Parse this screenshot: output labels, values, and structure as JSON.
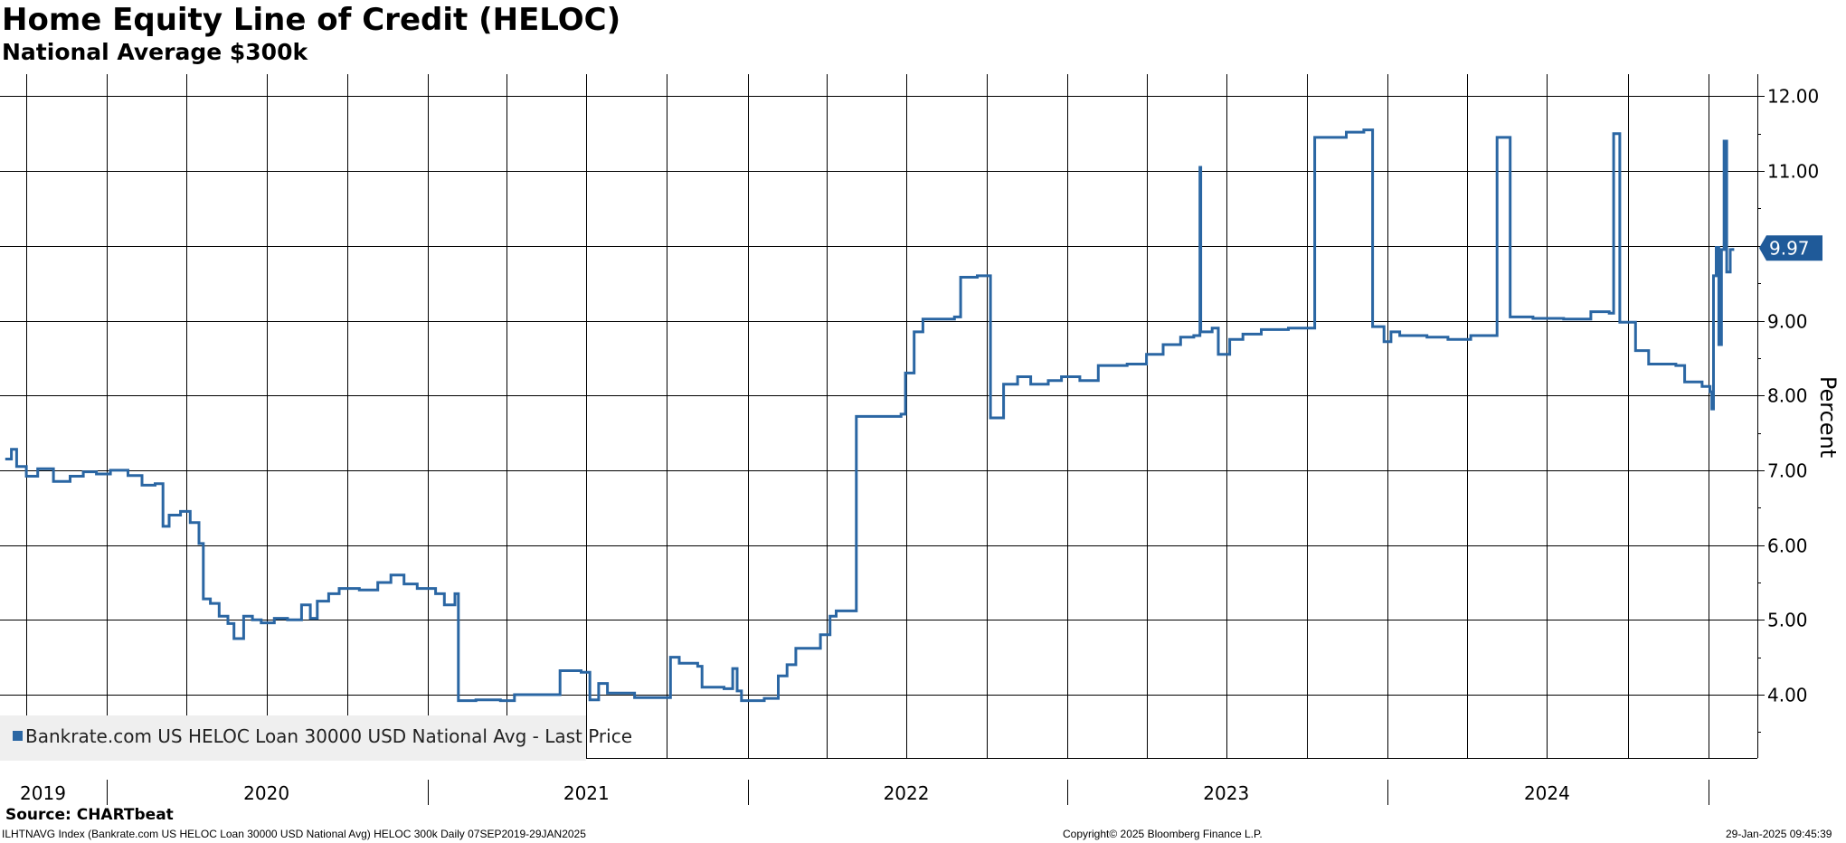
{
  "title": "Home Equity Line of Credit (HELOC)",
  "subtitle": "National Average $300k",
  "source": "Source: CHARTbeat",
  "footer": {
    "left": "ILHTNAVG Index (Bankrate.com US HELOC Loan 30000 USD National Avg) HELOC 300k  Daily 07SEP2019-29JAN2025",
    "center": "Copyright© 2025 Bloomberg Finance L.P.",
    "right": "29-Jan-2025 09:45:39"
  },
  "colors": {
    "line": "#2a66a3",
    "last_price_tag": "#1f5a99",
    "grid": "#000000"
  },
  "chart_data": {
    "type": "line",
    "ylabel": "Percent",
    "ylim": [
      3.2,
      12.2
    ],
    "xlim": [
      "2019-09-07",
      "2025-01-29"
    ],
    "yticks": [
      "4.00",
      "5.00",
      "6.00",
      "7.00",
      "8.00",
      "9.00",
      "10.00",
      "11.00",
      "12.00"
    ],
    "year_labels": [
      "2019",
      "2020",
      "2021",
      "2022",
      "2023",
      "2024"
    ],
    "last_price": "9.97",
    "grid": true,
    "legend": {
      "position": "bottom-left",
      "label": "Bankrate.com US HELOC Loan 30000 USD National Avg - Last Price"
    },
    "series": [
      {
        "name": "Bankrate.com US HELOC Loan 30000 USD National Avg - Last Price",
        "points": [
          [
            "2019-09-07",
            7.15
          ],
          [
            "2019-09-14",
            7.28
          ],
          [
            "2019-09-20",
            7.05
          ],
          [
            "2019-10-01",
            6.92
          ],
          [
            "2019-10-14",
            7.02
          ],
          [
            "2019-11-01",
            6.85
          ],
          [
            "2019-11-20",
            6.92
          ],
          [
            "2019-12-05",
            6.98
          ],
          [
            "2019-12-20",
            6.95
          ],
          [
            "2020-01-05",
            7.0
          ],
          [
            "2020-01-25",
            6.93
          ],
          [
            "2020-02-10",
            6.8
          ],
          [
            "2020-02-25",
            6.82
          ],
          [
            "2020-03-05",
            6.25
          ],
          [
            "2020-03-12",
            6.4
          ],
          [
            "2020-03-25",
            6.45
          ],
          [
            "2020-04-05",
            6.3
          ],
          [
            "2020-04-15",
            6.02
          ],
          [
            "2020-04-20",
            5.28
          ],
          [
            "2020-04-28",
            5.22
          ],
          [
            "2020-05-08",
            5.05
          ],
          [
            "2020-05-18",
            4.95
          ],
          [
            "2020-05-25",
            4.75
          ],
          [
            "2020-06-05",
            5.05
          ],
          [
            "2020-06-15",
            5.0
          ],
          [
            "2020-06-25",
            4.96
          ],
          [
            "2020-07-10",
            5.02
          ],
          [
            "2020-07-25",
            5.0
          ],
          [
            "2020-08-10",
            5.2
          ],
          [
            "2020-08-20",
            5.02
          ],
          [
            "2020-08-28",
            5.25
          ],
          [
            "2020-09-10",
            5.35
          ],
          [
            "2020-09-22",
            5.42
          ],
          [
            "2020-10-15",
            5.4
          ],
          [
            "2020-11-05",
            5.5
          ],
          [
            "2020-11-20",
            5.6
          ],
          [
            "2020-12-05",
            5.48
          ],
          [
            "2020-12-20",
            5.42
          ],
          [
            "2021-01-10",
            5.35
          ],
          [
            "2021-01-20",
            5.2
          ],
          [
            "2021-02-01",
            5.35
          ],
          [
            "2021-02-05",
            3.92
          ],
          [
            "2021-02-25",
            3.93
          ],
          [
            "2021-03-25",
            3.92
          ],
          [
            "2021-04-10",
            4.0
          ],
          [
            "2021-05-15",
            4.0
          ],
          [
            "2021-06-01",
            4.32
          ],
          [
            "2021-06-25",
            4.3
          ],
          [
            "2021-07-05",
            3.93
          ],
          [
            "2021-07-15",
            4.15
          ],
          [
            "2021-07-25",
            4.02
          ],
          [
            "2021-08-25",
            3.96
          ],
          [
            "2021-09-25",
            3.96
          ],
          [
            "2021-10-05",
            4.5
          ],
          [
            "2021-10-15",
            4.42
          ],
          [
            "2021-11-05",
            4.38
          ],
          [
            "2021-11-10",
            4.1
          ],
          [
            "2021-12-05",
            4.08
          ],
          [
            "2021-12-15",
            4.35
          ],
          [
            "2021-12-20",
            4.05
          ],
          [
            "2021-12-25",
            3.92
          ],
          [
            "2022-01-20",
            3.95
          ],
          [
            "2022-02-05",
            4.25
          ],
          [
            "2022-02-15",
            4.4
          ],
          [
            "2022-02-25",
            4.62
          ],
          [
            "2022-03-25",
            4.8
          ],
          [
            "2022-04-05",
            5.05
          ],
          [
            "2022-04-12",
            5.12
          ],
          [
            "2022-04-20",
            5.12
          ],
          [
            "2022-05-05",
            7.72
          ],
          [
            "2022-06-25",
            7.75
          ],
          [
            "2022-06-30",
            8.3
          ],
          [
            "2022-07-10",
            8.85
          ],
          [
            "2022-07-20",
            9.02
          ],
          [
            "2022-08-25",
            9.05
          ],
          [
            "2022-09-01",
            9.58
          ],
          [
            "2022-09-20",
            9.6
          ],
          [
            "2022-10-05",
            7.7
          ],
          [
            "2022-10-20",
            8.15
          ],
          [
            "2022-11-05",
            8.25
          ],
          [
            "2022-11-20",
            8.15
          ],
          [
            "2022-12-10",
            8.2
          ],
          [
            "2022-12-25",
            8.25
          ],
          [
            "2023-01-15",
            8.2
          ],
          [
            "2023-02-05",
            8.4
          ],
          [
            "2023-03-10",
            8.42
          ],
          [
            "2023-04-01",
            8.55
          ],
          [
            "2023-04-20",
            8.68
          ],
          [
            "2023-05-10",
            8.78
          ],
          [
            "2023-05-25",
            8.8
          ],
          [
            "2023-06-01",
            11.05
          ],
          [
            "2023-06-02",
            8.85
          ],
          [
            "2023-06-15",
            8.9
          ],
          [
            "2023-06-22",
            8.55
          ],
          [
            "2023-07-05",
            8.75
          ],
          [
            "2023-07-20",
            8.82
          ],
          [
            "2023-08-10",
            8.88
          ],
          [
            "2023-09-10",
            8.9
          ],
          [
            "2023-09-25",
            8.9
          ],
          [
            "2023-10-10",
            11.45
          ],
          [
            "2023-11-15",
            11.52
          ],
          [
            "2023-12-05",
            11.55
          ],
          [
            "2023-12-15",
            8.92
          ],
          [
            "2023-12-28",
            8.72
          ],
          [
            "2024-01-05",
            8.85
          ],
          [
            "2024-01-15",
            8.8
          ],
          [
            "2024-02-15",
            8.78
          ],
          [
            "2024-03-10",
            8.75
          ],
          [
            "2024-04-05",
            8.8
          ],
          [
            "2024-05-05",
            11.45
          ],
          [
            "2024-05-20",
            9.05
          ],
          [
            "2024-06-15",
            9.03
          ],
          [
            "2024-07-20",
            9.02
          ],
          [
            "2024-08-20",
            9.12
          ],
          [
            "2024-09-10",
            9.1
          ],
          [
            "2024-09-15",
            11.5
          ],
          [
            "2024-09-22",
            8.98
          ],
          [
            "2024-10-10",
            8.6
          ],
          [
            "2024-10-25",
            8.42
          ],
          [
            "2024-11-25",
            8.4
          ],
          [
            "2024-12-05",
            8.18
          ],
          [
            "2024-12-25",
            8.12
          ],
          [
            "2025-01-03",
            8.05
          ],
          [
            "2025-01-05",
            7.82
          ],
          [
            "2025-01-07",
            9.6
          ],
          [
            "2025-01-10",
            9.98
          ],
          [
            "2025-01-13",
            8.68
          ],
          [
            "2025-01-16",
            9.95
          ],
          [
            "2025-01-19",
            11.4
          ],
          [
            "2025-01-22",
            9.65
          ],
          [
            "2025-01-26",
            9.95
          ],
          [
            "2025-01-29",
            9.97
          ]
        ]
      }
    ]
  }
}
